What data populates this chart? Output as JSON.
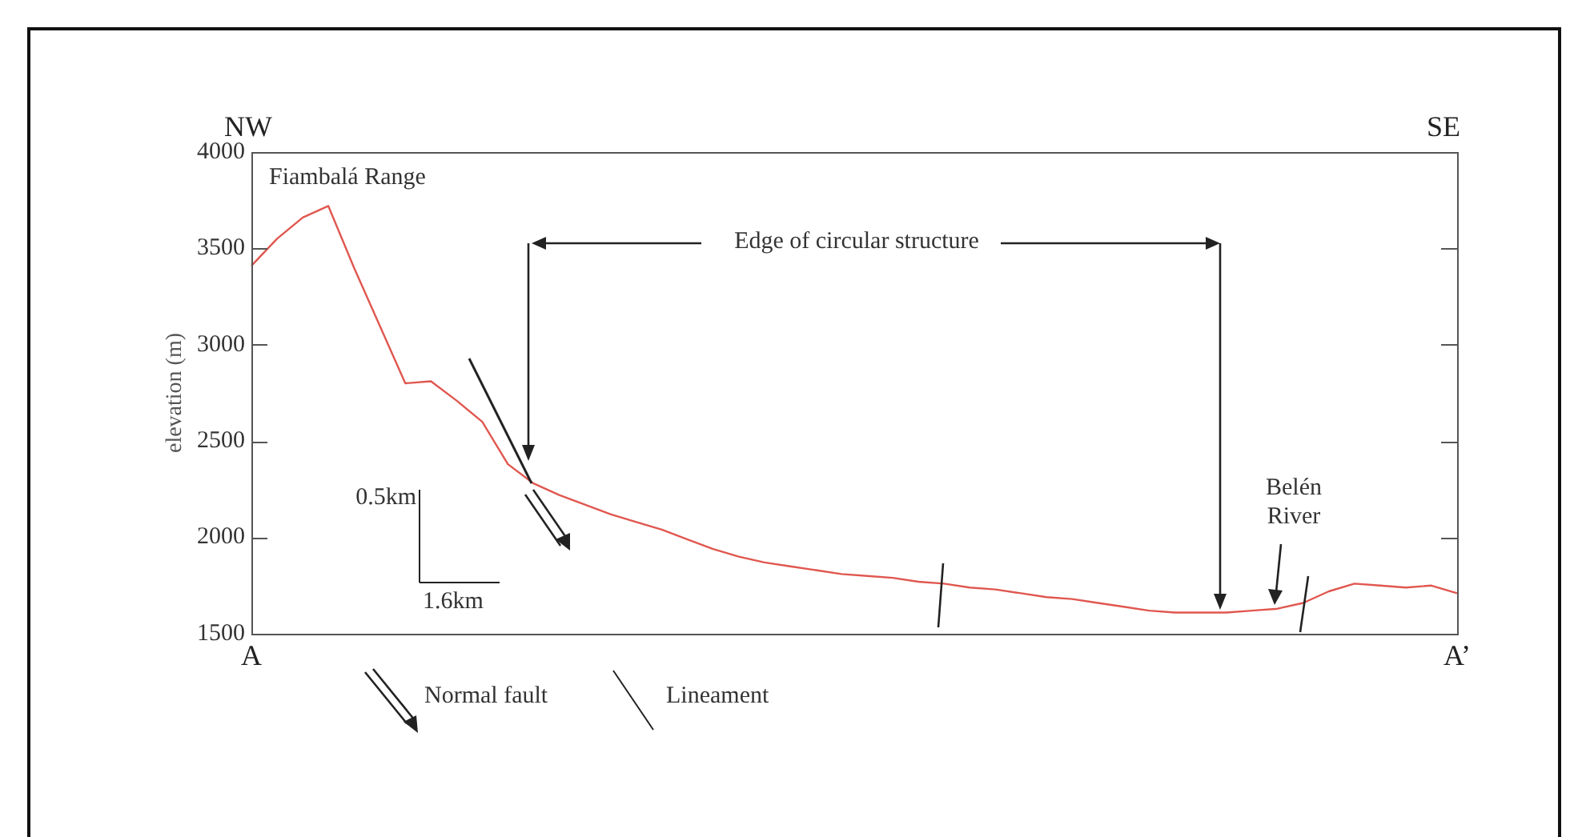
{
  "chart_data": {
    "type": "line",
    "ylabel": "elevation (m)",
    "categories": [
      "A",
      null,
      null,
      null,
      null,
      null,
      null,
      null,
      null,
      null,
      null,
      null,
      null,
      null,
      null,
      null,
      null,
      null,
      null,
      null,
      null,
      null,
      null,
      null,
      null,
      null,
      null,
      null,
      null,
      null,
      null,
      null,
      null,
      null,
      null,
      null,
      null,
      null,
      null,
      null,
      null,
      null,
      null,
      null,
      null,
      null,
      null,
      "A’"
    ],
    "series": [
      {
        "color": "#e0574f",
        "values": [
          3410,
          3550,
          3660,
          3720,
          3400,
          3100,
          2800,
          2810,
          2710,
          2600,
          2380,
          2280,
          2220,
          2170,
          2120,
          2080,
          2040,
          1990,
          1940,
          1900,
          1870,
          1850,
          1830,
          1810,
          1800,
          1790,
          1770,
          1760,
          1740,
          1730,
          1710,
          1690,
          1680,
          1660,
          1640,
          1620,
          1610,
          1610,
          1610,
          1620,
          1630,
          1660,
          1720,
          1760,
          1750,
          1740,
          1750,
          1710
        ]
      }
    ],
    "ylim": [
      1500,
      4000
    ],
    "yticks": [
      1500,
      2000,
      2500,
      3000,
      3500,
      4000
    ],
    "grid": false,
    "legend": false,
    "marker": "none",
    "line_style": "solid",
    "annotations": [
      "NW",
      "SE",
      "Fiambalá Range",
      "Edge of circular structure",
      "Belén River",
      "0.5km",
      "1.6km",
      "Normal fault",
      "Lineament"
    ]
  }
}
